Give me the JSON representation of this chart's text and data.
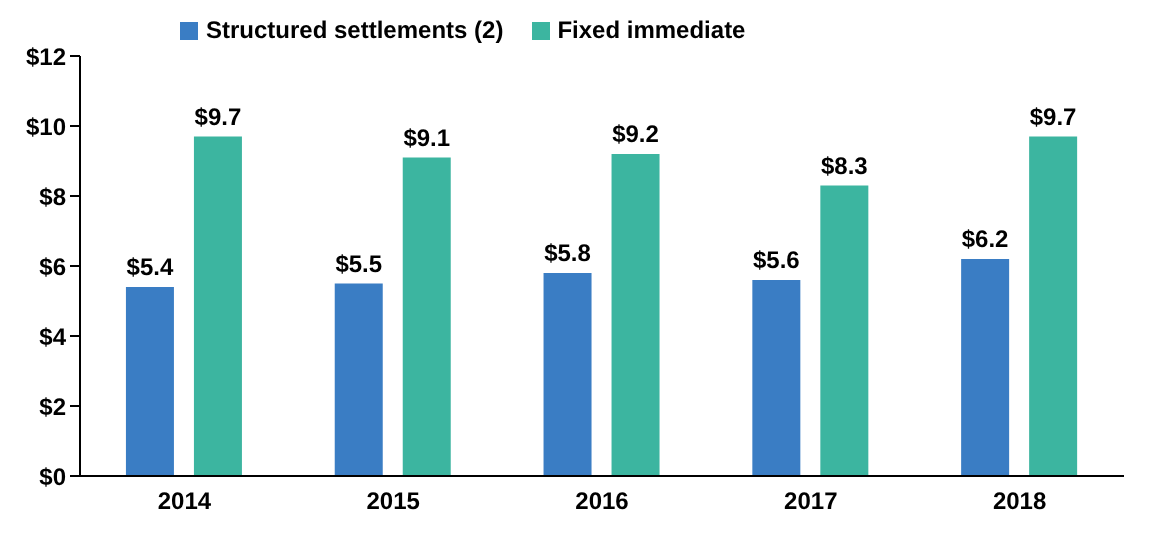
{
  "chart_data": {
    "type": "bar",
    "categories": [
      "2014",
      "2015",
      "2016",
      "2017",
      "2018"
    ],
    "series": [
      {
        "name": "Structured settlements (2)",
        "color": "#3a7dc4",
        "values": [
          5.4,
          5.5,
          5.8,
          5.6,
          6.2
        ],
        "value_labels": [
          "$5.4",
          "$5.5",
          "$5.8",
          "$5.6",
          "$6.2"
        ]
      },
      {
        "name": "Fixed immediate",
        "color": "#3cb5a0",
        "values": [
          9.7,
          9.1,
          9.2,
          8.3,
          9.7
        ],
        "value_labels": [
          "$9.7",
          "$9.1",
          "$9.2",
          "$8.3",
          "$9.7"
        ]
      }
    ],
    "ylim": [
      0,
      12
    ],
    "yticks": [
      {
        "value": 0,
        "label": "$0"
      },
      {
        "value": 2,
        "label": "$2"
      },
      {
        "value": 4,
        "label": "$4"
      },
      {
        "value": 6,
        "label": "$6"
      },
      {
        "value": 8,
        "label": "$8"
      },
      {
        "value": 10,
        "label": "$10"
      },
      {
        "value": 12,
        "label": "$12"
      }
    ],
    "grid": false,
    "legend": "top left"
  }
}
